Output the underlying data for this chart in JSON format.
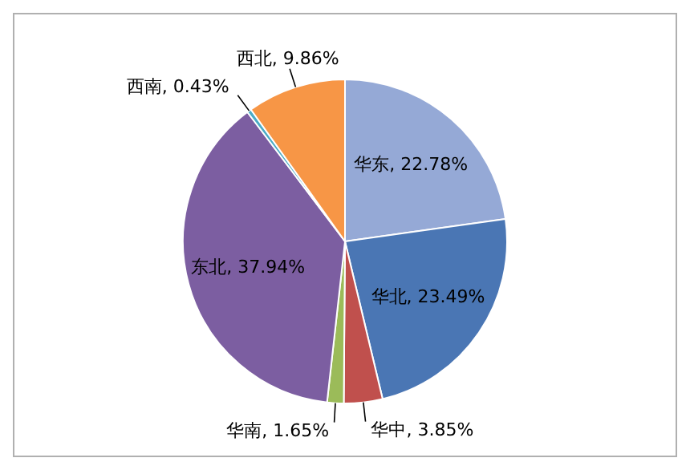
{
  "chart_data": {
    "type": "pie",
    "categories": [
      "华东",
      "华北",
      "华中",
      "华南",
      "东北",
      "西南",
      "西北"
    ],
    "values": [
      22.78,
      23.49,
      3.85,
      1.65,
      37.94,
      0.43,
      9.86
    ],
    "colors": [
      "#95a9d6",
      "#4a76b4",
      "#c0504d",
      "#9bbb59",
      "#7c5ea1",
      "#4bacc6",
      "#f79646"
    ],
    "value_labels": [
      "22.78%",
      "23.49%",
      "3.85%",
      "1.65%",
      "37.94%",
      "0.43%",
      "9.86%"
    ],
    "legend": false
  }
}
